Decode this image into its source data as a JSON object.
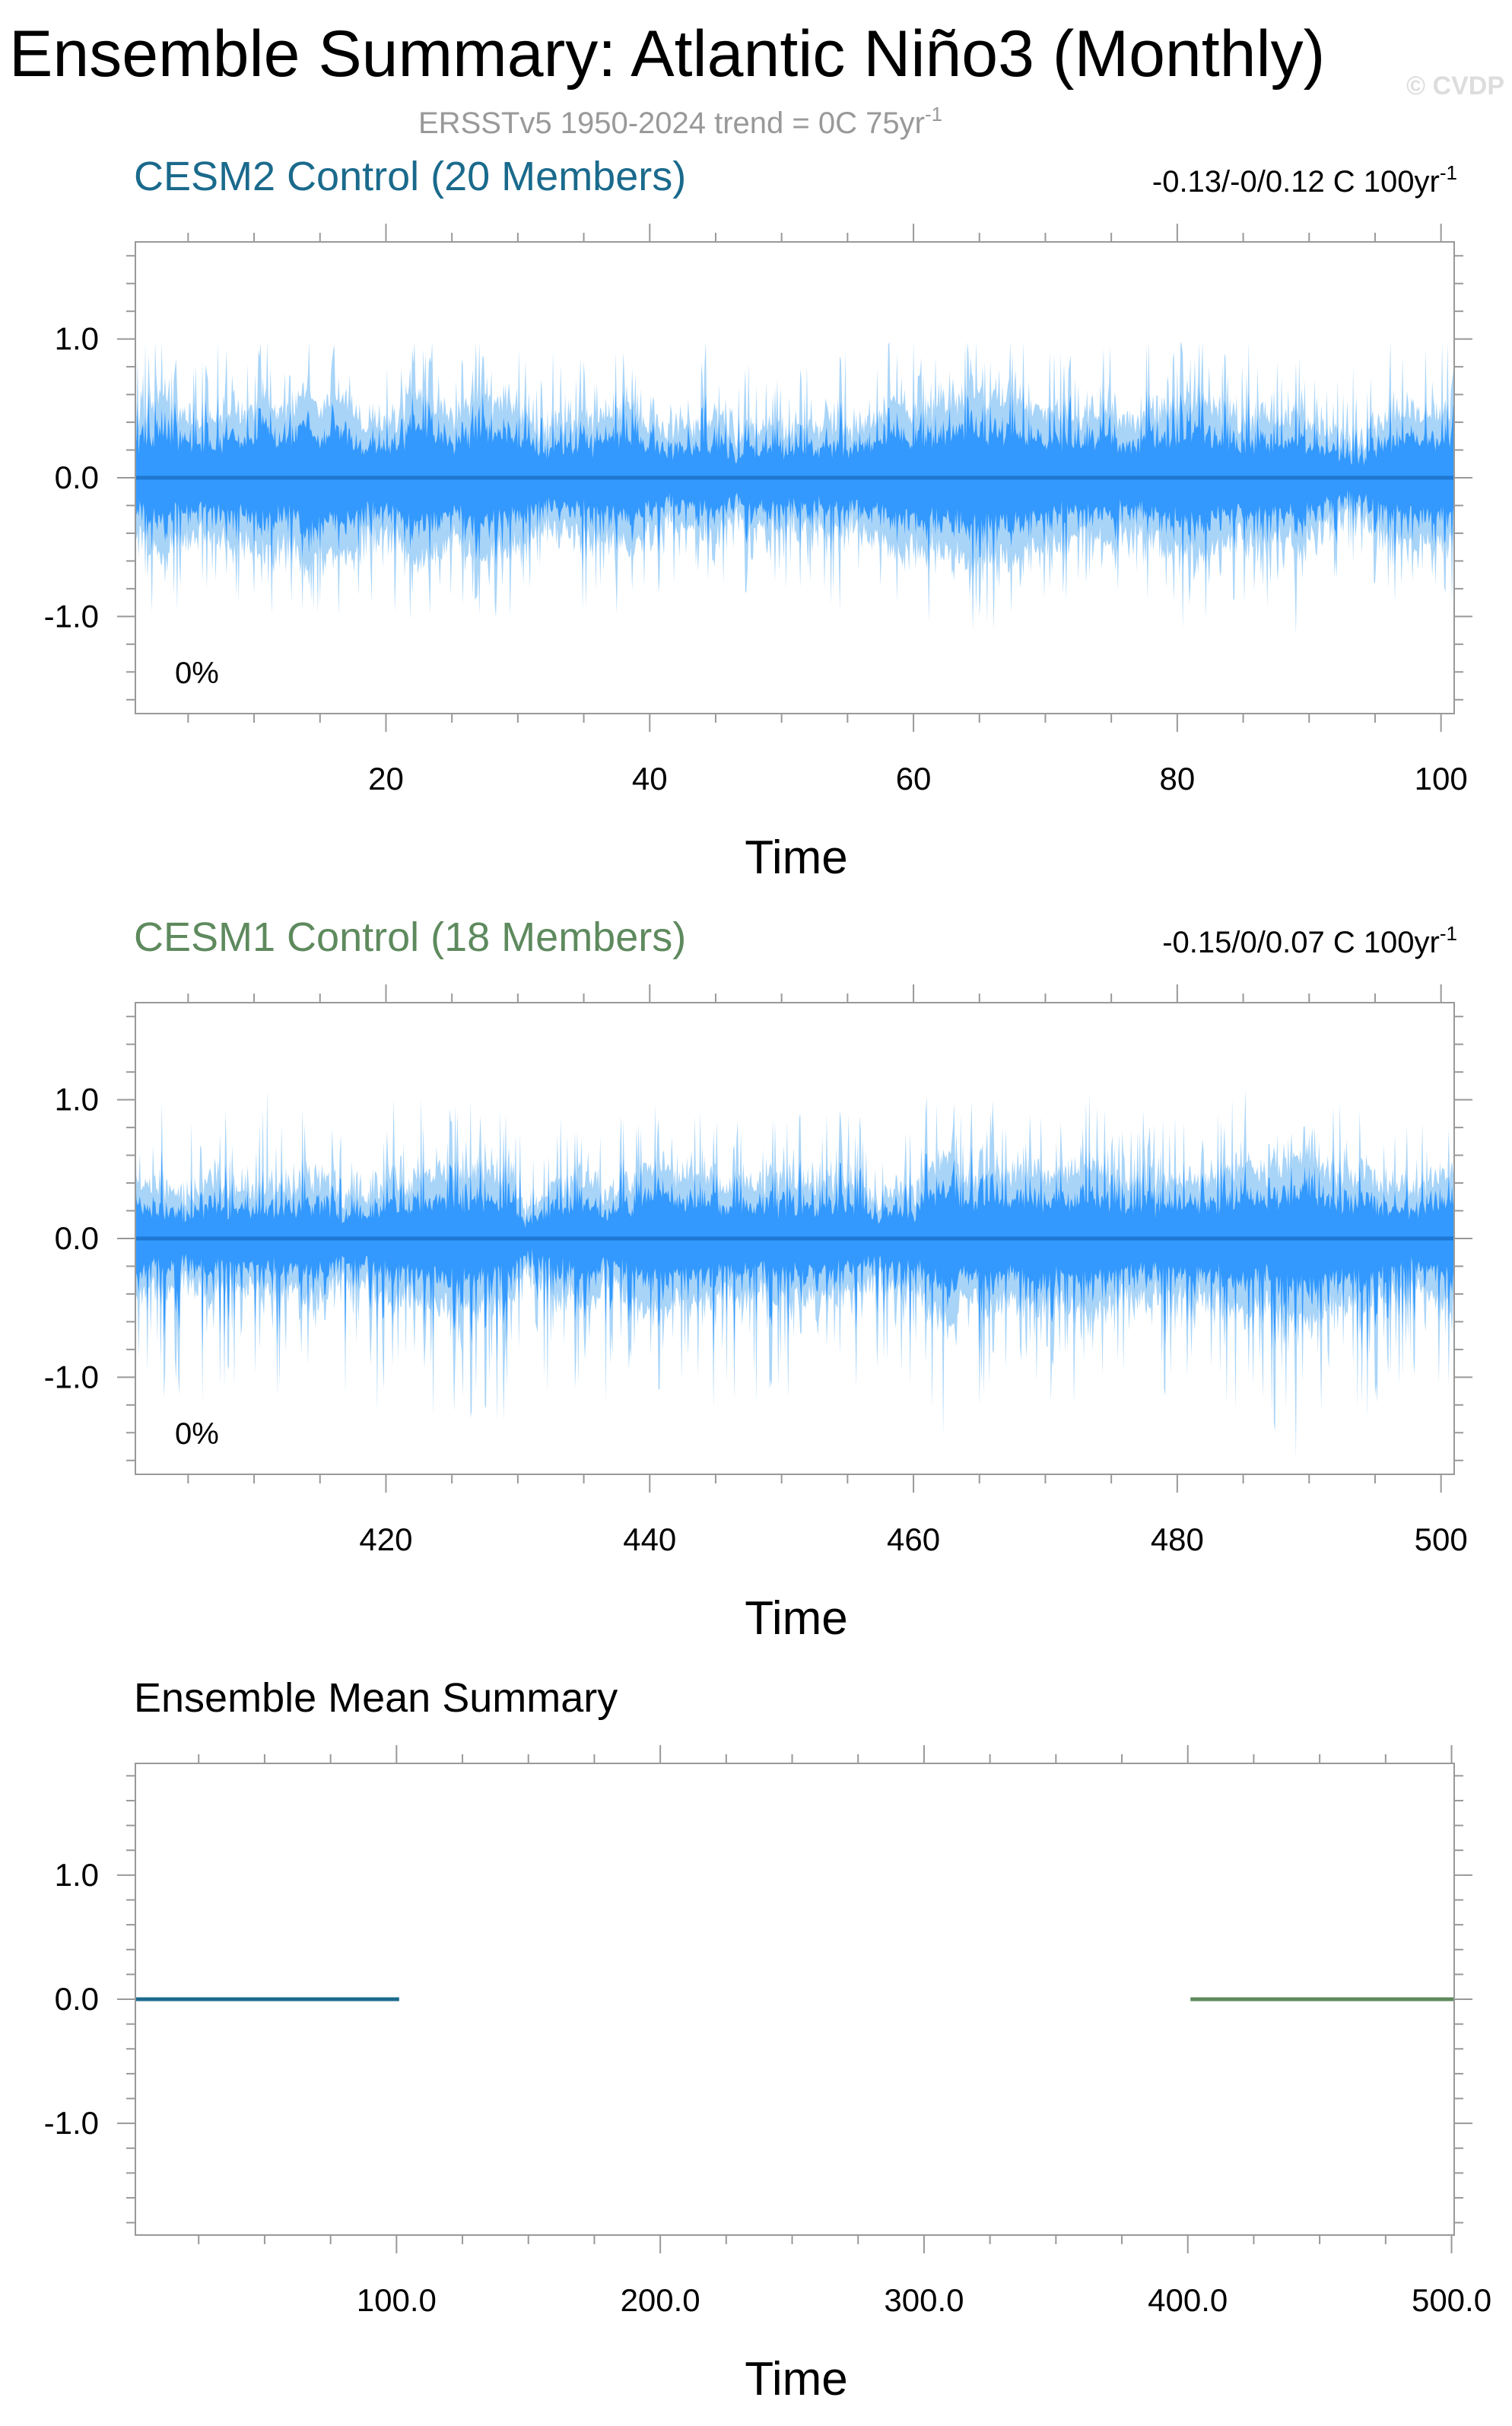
{
  "figure": {
    "title": "Ensemble Summary: Atlantic Niño3 (Monthly)",
    "subtitle": "ERSSTv5 1950-2024 trend = 0C 75yr",
    "subtitle_sup": "-1",
    "watermark": "© CVDP"
  },
  "colors": {
    "spread_outer": "#a8d4f8",
    "spread_inner": "#3399ff",
    "mean_line": "#1e78d2",
    "cesm2": "#1a6a8c",
    "cesm1": "#5e8a5e",
    "subtitle": "#999999",
    "frame": "#999999"
  },
  "chart_data": [
    {
      "type": "area",
      "title": "CESM2 Control (20 Members)",
      "trend_text": "-0.13/-0/0.12 C 100yr",
      "trend_sup": "-1",
      "percent_label": "0%",
      "xlabel": "Time",
      "ylabel": "",
      "xlim": [
        1,
        101
      ],
      "ylim": [
        -1.7,
        1.7
      ],
      "xticks": [
        20,
        40,
        60,
        80,
        100
      ],
      "xtick_labels": [
        "20",
        "40",
        "60",
        "80",
        "100"
      ],
      "yticks": [
        1.0,
        0.0,
        -1.0
      ],
      "ytick_labels": [
        "1.0",
        "0.0",
        "-1.0"
      ],
      "series": [
        {
          "role": "ensemble_range",
          "min": -1.13,
          "max": 0.98
        },
        {
          "role": "ensemble_mean",
          "values": [
            0.0,
            0.0
          ]
        }
      ]
    },
    {
      "type": "area",
      "title": "CESM1 Control (18 Members)",
      "trend_text": "-0.15/0/0.07 C 100yr",
      "trend_sup": "-1",
      "percent_label": "0%",
      "xlabel": "Time",
      "ylabel": "",
      "xlim": [
        401,
        501
      ],
      "ylim": [
        -1.7,
        1.7
      ],
      "xticks": [
        420,
        440,
        460,
        480,
        500
      ],
      "xtick_labels": [
        "420",
        "440",
        "460",
        "480",
        "500"
      ],
      "yticks": [
        1.0,
        0.0,
        -1.0
      ],
      "ytick_labels": [
        "1.0",
        "0.0",
        "-1.0"
      ],
      "series": [
        {
          "role": "ensemble_range",
          "min": -1.58,
          "max": 1.08
        },
        {
          "role": "ensemble_mean",
          "values": [
            0.0,
            0.0
          ]
        }
      ]
    },
    {
      "type": "line",
      "title": "Ensemble Mean Summary",
      "xlabel": "Time",
      "ylabel": "",
      "xlim": [
        1,
        501
      ],
      "ylim": [
        -1.9,
        1.9
      ],
      "xticks": [
        100,
        200,
        300,
        400,
        500
      ],
      "xtick_labels": [
        "100.0",
        "200.0",
        "300.0",
        "400.0",
        "500.0"
      ],
      "yticks": [
        1.0,
        0.0,
        -1.0
      ],
      "ytick_labels": [
        "1.0",
        "0.0",
        "-1.0"
      ],
      "series": [
        {
          "role": "cesm2_mean",
          "x": [
            1,
            101
          ],
          "values": [
            0.0,
            0.0
          ]
        },
        {
          "role": "cesm1_mean",
          "x": [
            401,
            501
          ],
          "values": [
            0.0,
            0.0
          ]
        }
      ]
    }
  ]
}
